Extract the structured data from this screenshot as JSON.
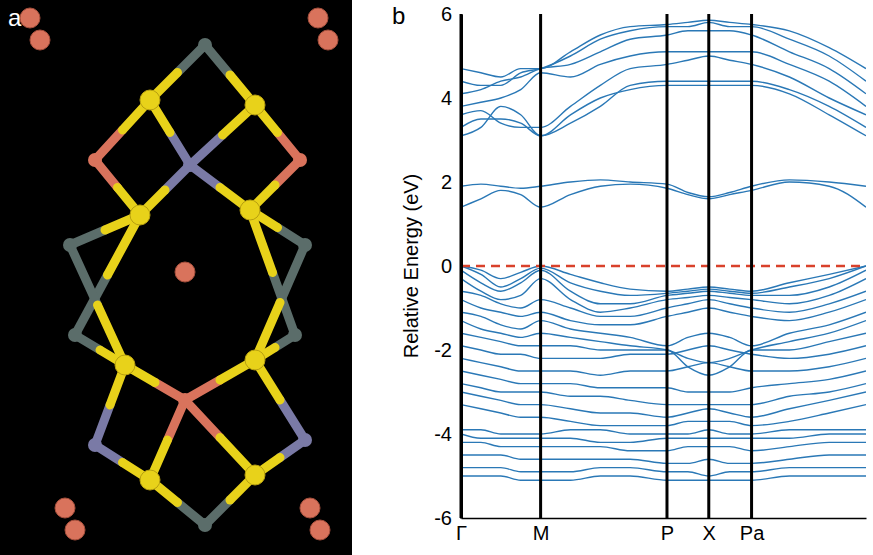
{
  "panel_labels": [
    "a",
    "b"
  ],
  "chart_data": {
    "type": "line",
    "y_label": "Relative Energy (eV)",
    "x": [
      0,
      20,
      40,
      60,
      80,
      110,
      140,
      170,
      207,
      228,
      249,
      270,
      292,
      330,
      370,
      407
    ],
    "xlim": [
      0,
      407
    ],
    "xticks": [
      {
        "value": 0,
        "label": "Γ"
      },
      {
        "value": 80,
        "label": "M"
      },
      {
        "value": 207,
        "label": "P"
      },
      {
        "value": 249,
        "label": "X"
      },
      {
        "value": 292,
        "label": "Pa"
      }
    ],
    "ylim": [
      -6,
      6
    ],
    "yticks": [
      -6,
      -4,
      -2,
      0,
      2,
      4,
      6
    ],
    "grid": "x",
    "color": "#2a78b6",
    "series": [
      {
        "values": [
          1.4,
          1.6,
          1.8,
          1.7,
          1.4,
          1.7,
          1.9,
          1.95,
          1.85,
          1.7,
          1.6,
          1.7,
          1.8,
          2.0,
          1.9,
          1.4
        ]
      },
      {
        "values": [
          1.9,
          1.95,
          1.9,
          1.85,
          1.9,
          2.0,
          2.05,
          2.0,
          1.95,
          1.75,
          1.65,
          1.75,
          1.9,
          2.05,
          2.0,
          1.9
        ]
      },
      {
        "values": [
          3.1,
          3.3,
          3.8,
          3.6,
          3.1,
          3.6,
          4.0,
          4.2,
          4.3,
          4.3,
          4.3,
          4.3,
          4.3,
          4.1,
          3.6,
          3.1
        ]
      },
      {
        "values": [
          3.3,
          3.5,
          3.5,
          3.4,
          3.1,
          3.4,
          3.8,
          4.3,
          4.4,
          4.4,
          4.4,
          4.4,
          4.4,
          4.2,
          3.8,
          3.3
        ]
      },
      {
        "values": [
          3.6,
          3.7,
          3.4,
          3.3,
          3.3,
          3.8,
          4.3,
          4.7,
          4.8,
          4.9,
          5.0,
          4.9,
          4.8,
          4.5,
          4.0,
          3.6
        ]
      },
      {
        "values": [
          3.8,
          3.9,
          4.0,
          4.2,
          4.6,
          4.5,
          4.8,
          5.0,
          5.1,
          5.1,
          5.1,
          5.1,
          5.1,
          4.8,
          4.4,
          3.8
        ]
      },
      {
        "values": [
          4.1,
          4.2,
          4.4,
          4.5,
          4.7,
          4.8,
          5.1,
          5.4,
          5.5,
          5.6,
          5.6,
          5.6,
          5.5,
          5.1,
          4.7,
          4.1
        ]
      },
      {
        "values": [
          4.4,
          4.3,
          4.3,
          4.6,
          4.7,
          5.0,
          5.4,
          5.6,
          5.7,
          5.7,
          5.8,
          5.7,
          5.7,
          5.4,
          5.0,
          4.4
        ]
      },
      {
        "values": [
          4.7,
          4.6,
          4.5,
          4.7,
          4.7,
          5.1,
          5.5,
          5.7,
          5.75,
          5.8,
          5.85,
          5.8,
          5.75,
          5.6,
          5.2,
          4.7
        ]
      },
      {
        "values": [
          0,
          -0.1,
          -0.3,
          -0.15,
          0,
          -0.2,
          -0.4,
          -0.55,
          -0.6,
          -0.55,
          -0.5,
          -0.55,
          -0.6,
          -0.4,
          -0.2,
          0
        ]
      },
      {
        "values": [
          0,
          -0.2,
          -0.5,
          -0.3,
          -0.05,
          -0.4,
          -0.6,
          -0.7,
          -0.65,
          -0.6,
          -0.55,
          -0.6,
          -0.65,
          -0.5,
          -0.3,
          0
        ]
      },
      {
        "values": [
          -0.1,
          -0.4,
          -0.6,
          -0.4,
          -0.1,
          -0.6,
          -0.9,
          -0.9,
          -0.7,
          -0.65,
          -0.6,
          -0.65,
          -0.7,
          -0.7,
          -0.5,
          -0.1
        ]
      },
      {
        "values": [
          -0.3,
          -0.6,
          -0.8,
          -0.7,
          -0.3,
          -0.8,
          -1.1,
          -1.0,
          -0.8,
          -0.75,
          -0.7,
          -0.75,
          -0.8,
          -0.9,
          -0.7,
          -0.3
        ]
      },
      {
        "values": [
          -0.6,
          -0.7,
          -0.9,
          -1.0,
          -0.8,
          -1.0,
          -1.2,
          -1.2,
          -1.0,
          -0.9,
          -0.8,
          -0.9,
          -1.0,
          -1.1,
          -0.9,
          -0.6
        ]
      },
      {
        "values": [
          -0.8,
          -1.0,
          -1.1,
          -1.2,
          -1.1,
          -1.3,
          -1.4,
          -1.4,
          -1.2,
          -1.1,
          -1.0,
          -1.1,
          -1.2,
          -1.3,
          -1.1,
          -0.8
        ]
      },
      {
        "values": [
          -1.1,
          -1.2,
          -1.4,
          -1.5,
          -1.3,
          -1.5,
          -1.6,
          -1.7,
          -1.9,
          -1.7,
          -1.6,
          -1.7,
          -1.9,
          -1.6,
          -1.4,
          -1.1
        ]
      },
      {
        "values": [
          -1.3,
          -1.5,
          -1.6,
          -1.7,
          -1.6,
          -1.7,
          -1.8,
          -1.9,
          -2.0,
          -2.2,
          -2.3,
          -2.2,
          -2.0,
          -1.8,
          -1.6,
          -1.3
        ]
      },
      {
        "values": [
          -1.6,
          -1.7,
          -1.8,
          -1.9,
          -1.9,
          -1.9,
          -2.0,
          -2.0,
          -2.0,
          -2.4,
          -2.6,
          -2.4,
          -2.0,
          -2.0,
          -1.8,
          -1.6
        ]
      },
      {
        "values": [
          -1.9,
          -2.0,
          -2.1,
          -2.1,
          -2.2,
          -2.2,
          -2.2,
          -2.1,
          -2.1,
          -2.0,
          -1.9,
          -2.0,
          -2.1,
          -2.2,
          -2.1,
          -1.9
        ]
      },
      {
        "values": [
          -2.2,
          -2.3,
          -2.4,
          -2.5,
          -2.5,
          -2.5,
          -2.6,
          -2.5,
          -2.5,
          -2.4,
          -2.3,
          -2.4,
          -2.5,
          -2.5,
          -2.4,
          -2.2
        ]
      },
      {
        "values": [
          -2.5,
          -2.6,
          -2.7,
          -2.8,
          -2.8,
          -2.8,
          -2.9,
          -2.9,
          -2.9,
          -3.0,
          -3.0,
          -3.0,
          -2.9,
          -2.8,
          -2.7,
          -2.5
        ]
      },
      {
        "values": [
          -2.8,
          -2.9,
          -3.0,
          -3.0,
          -3.0,
          -3.1,
          -3.1,
          -3.2,
          -3.3,
          -3.3,
          -3.3,
          -3.3,
          -3.3,
          -3.1,
          -3.0,
          -2.8
        ]
      },
      {
        "values": [
          -3.0,
          -3.1,
          -3.2,
          -3.3,
          -3.3,
          -3.4,
          -3.5,
          -3.5,
          -3.6,
          -3.5,
          -3.4,
          -3.5,
          -3.6,
          -3.4,
          -3.2,
          -3.0
        ]
      },
      {
        "values": [
          -3.3,
          -3.4,
          -3.5,
          -3.6,
          -3.6,
          -3.7,
          -3.8,
          -3.8,
          -3.8,
          -3.7,
          -3.7,
          -3.7,
          -3.8,
          -3.7,
          -3.5,
          -3.3
        ]
      },
      {
        "values": [
          -3.9,
          -3.9,
          -4.0,
          -4.0,
          -4.0,
          -3.9,
          -3.9,
          -4.0,
          -4.0,
          -4.0,
          -3.9,
          -4.0,
          -4.0,
          -3.9,
          -3.9,
          -3.9
        ]
      },
      {
        "values": [
          -4.0,
          -4.1,
          -4.1,
          -4.1,
          -4.1,
          -4.1,
          -4.2,
          -4.2,
          -4.1,
          -4.1,
          -4.1,
          -4.1,
          -4.1,
          -4.1,
          -4.0,
          -4.0
        ]
      },
      {
        "values": [
          -4.2,
          -4.2,
          -4.3,
          -4.3,
          -4.3,
          -4.3,
          -4.3,
          -4.4,
          -4.4,
          -4.3,
          -4.3,
          -4.3,
          -4.4,
          -4.3,
          -4.2,
          -4.2
        ]
      },
      {
        "values": [
          -4.5,
          -4.5,
          -4.5,
          -4.6,
          -4.6,
          -4.6,
          -4.6,
          -4.6,
          -4.7,
          -4.7,
          -4.6,
          -4.7,
          -4.7,
          -4.6,
          -4.5,
          -4.5
        ]
      },
      {
        "values": [
          -4.8,
          -4.8,
          -4.8,
          -4.9,
          -4.9,
          -4.9,
          -4.8,
          -4.8,
          -4.9,
          -4.9,
          -5.0,
          -4.9,
          -4.9,
          -4.8,
          -4.8,
          -4.8
        ]
      },
      {
        "values": [
          -5.0,
          -5.0,
          -5.0,
          -5.1,
          -5.1,
          -5.1,
          -5.0,
          -5.0,
          -5.1,
          -5.1,
          -5.1,
          -5.1,
          -5.1,
          -5.0,
          -5.0,
          -5.0
        ]
      },
      {
        "values": [
          0,
          0,
          0,
          0,
          0,
          0,
          0,
          0,
          0,
          0,
          0,
          0,
          0,
          0,
          0,
          0
        ],
        "color": "#d9412b",
        "line_style": "dashed"
      }
    ]
  }
}
